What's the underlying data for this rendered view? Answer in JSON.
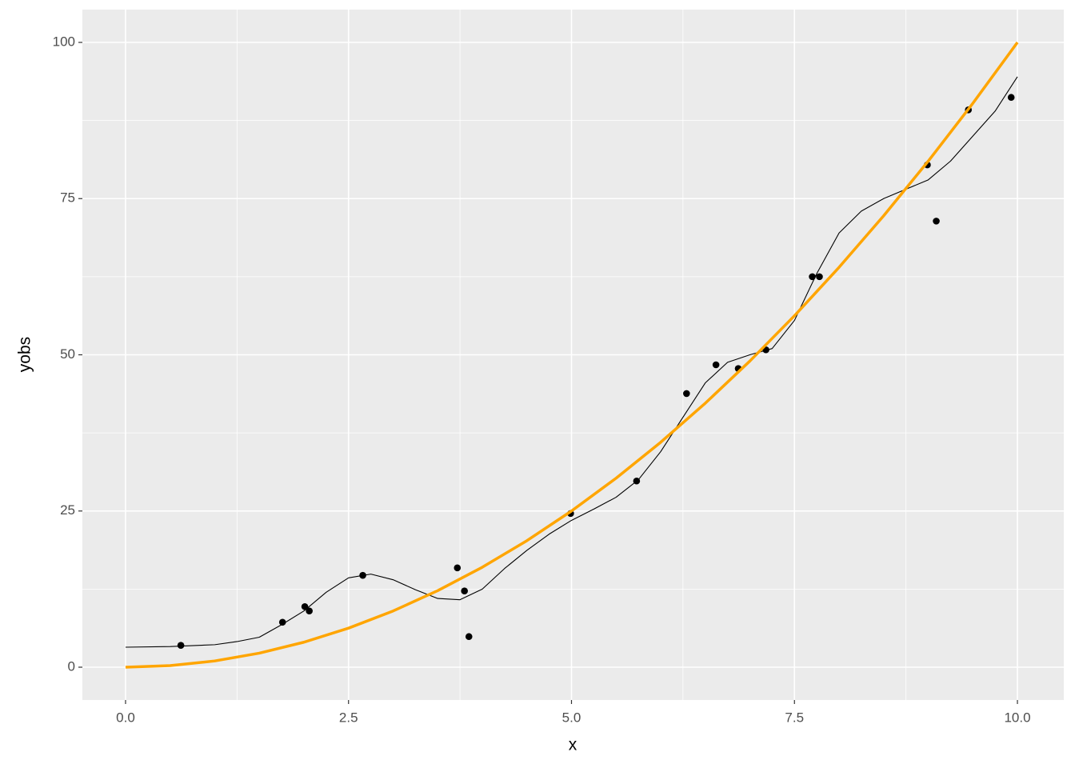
{
  "chart_data": {
    "type": "scatter",
    "xlabel": "x",
    "ylabel": "yobs",
    "xlim": [
      -0.484,
      10.52
    ],
    "ylim": [
      -5.25,
      105.25
    ],
    "xticks": [
      {
        "value": 0,
        "label": "0.0"
      },
      2.5,
      {
        "value": 5,
        "label": "5.0"
      },
      7.5,
      {
        "value": 10,
        "label": "10.0"
      }
    ],
    "yticks": [
      0,
      25,
      50,
      75,
      100
    ],
    "grid": true,
    "background": "#EBEBEB",
    "series": [
      {
        "type": "scatter",
        "color": "#000000",
        "x": [
          0.62,
          1.76,
          2.01,
          2.06,
          2.66,
          3.72,
          3.8,
          3.85,
          4.99,
          5.73,
          6.29,
          6.62,
          6.87,
          7.18,
          7.7,
          7.78,
          8.99,
          9.09,
          9.45,
          9.93
        ],
        "values": [
          3.5,
          7.2,
          9.7,
          9.0,
          14.7,
          15.9,
          12.2,
          4.9,
          24.6,
          29.8,
          43.8,
          48.4,
          47.8,
          50.8,
          62.5,
          62.5,
          80.4,
          71.4,
          89.2,
          91.2
        ]
      },
      {
        "type": "line",
        "color": "#000000",
        "width": 1.1,
        "x": [
          0,
          0.5,
          1,
          1.25,
          1.5,
          1.75,
          2,
          2.25,
          2.5,
          2.75,
          3,
          3.25,
          3.5,
          3.75,
          4,
          4.25,
          4.5,
          4.75,
          5,
          5.25,
          5.5,
          5.75,
          6,
          6.25,
          6.5,
          6.75,
          7,
          7.25,
          7.5,
          7.75,
          8,
          8.25,
          8.5,
          8.75,
          9,
          9.25,
          9.5,
          9.75,
          10
        ],
        "values": [
          3.2,
          3.3,
          3.6,
          4.1,
          4.8,
          6.8,
          9.0,
          12.0,
          14.3,
          14.9,
          14.0,
          12.4,
          11.0,
          10.8,
          12.5,
          15.8,
          18.7,
          21.3,
          23.5,
          25.3,
          27.2,
          30.0,
          34.5,
          40.0,
          45.5,
          48.8,
          50.0,
          51.0,
          55.5,
          63.0,
          69.5,
          73.0,
          75.0,
          76.5,
          78.0,
          81.0,
          85.0,
          89.0,
          94.5
        ]
      },
      {
        "type": "line",
        "color": "#FFA500",
        "width": 3.5,
        "x": [
          0,
          0.5,
          1,
          1.5,
          2,
          2.5,
          3,
          3.5,
          4,
          4.5,
          5,
          5.5,
          6,
          6.5,
          7,
          7.5,
          8,
          8.5,
          9,
          9.5,
          10
        ],
        "values": [
          0,
          0.25,
          1,
          2.25,
          4,
          6.25,
          9,
          12.25,
          16,
          20.25,
          25,
          30.25,
          36,
          42.25,
          49,
          56.25,
          64,
          72.25,
          81,
          90.25,
          100
        ]
      }
    ]
  }
}
